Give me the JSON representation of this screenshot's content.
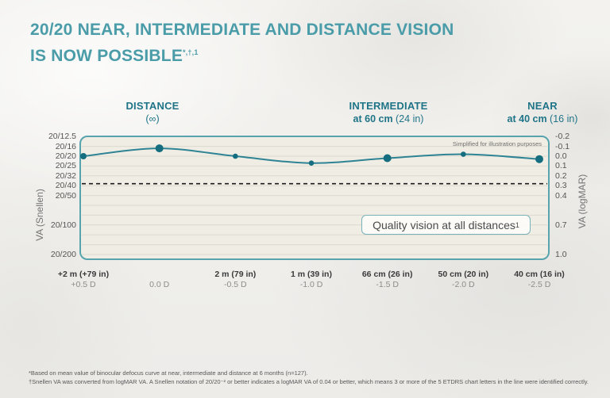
{
  "page": {
    "title_line1": "20/20 NEAR, INTERMEDIATE AND DISTANCE VISION",
    "title_line2": "IS NOW POSSIBLE",
    "title_superscript": "*,†,1",
    "accent_color": "#4A9CA9"
  },
  "headers": [
    {
      "line1": "DISTANCE",
      "line2_bold": "",
      "line2_normal": "(∞)"
    },
    {
      "line1": "INTERMEDIATE",
      "line2_bold": "at 60 cm",
      "line2_normal": " (24 in)"
    },
    {
      "line1": "NEAR",
      "line2_bold": "at 40 cm",
      "line2_normal": " (16 in)"
    }
  ],
  "chart_data": {
    "type": "line",
    "title": "",
    "note": "Simplified for illustration purposes",
    "callout": "Quality vision at all distances",
    "callout_superscript": "1",
    "x_categories": [
      {
        "distance": "+2 m (+79 in)",
        "defocus": "+0.5 D"
      },
      {
        "distance": "",
        "defocus": "0.0 D"
      },
      {
        "distance": "2 m (79 in)",
        "defocus": "-0.5 D"
      },
      {
        "distance": "1 m (39 in)",
        "defocus": "-1.0 D"
      },
      {
        "distance": "66 cm (26 in)",
        "defocus": "-1.5 D"
      },
      {
        "distance": "50 cm (20 in)",
        "defocus": "-2.0 D"
      },
      {
        "distance": "40 cm (16 in)",
        "defocus": "-2.5 D"
      }
    ],
    "series": [
      {
        "name": "Mean binocular defocus curve at 6 months",
        "values_logmar": [
          0.0,
          -0.08,
          0.0,
          0.07,
          0.02,
          -0.02,
          0.03
        ],
        "emphasized_point_indexes": [
          1,
          4,
          6
        ],
        "line_color": "#2E8494",
        "dot_color": "#156E80"
      }
    ],
    "y_axis_left": {
      "label": "VA (Snellen)",
      "tick_labels": [
        "20/12.5",
        "20/16",
        "20/20",
        "20/25",
        "20/32",
        "20/40",
        "20/50",
        "20/100",
        "20/200"
      ]
    },
    "y_axis_right": {
      "label": "VA (logMAR)",
      "tick_labels": [
        "-0.2",
        "-0.1",
        "0.0",
        "0.1",
        "0.2",
        "0.3",
        "0.4",
        "0.7",
        "1.0"
      ]
    },
    "tick_logmar_positions": [
      -0.2,
      -0.1,
      0.0,
      0.1,
      0.2,
      0.3,
      0.4,
      0.7,
      1.0
    ],
    "ylim": [
      -0.2,
      1.0
    ],
    "reference_line_logmar": 0.28,
    "grid": "horizontal gridlines every 0.1 logMAR",
    "legend_position": "none"
  },
  "footnotes": [
    "*Based on mean value of binocular defocus curve at near, intermediate and distance at 6 months (n=127).",
    "†Snellen VA was converted from logMAR VA. A Snellen notation of 20/20⁻² or better indicates a logMAR VA of 0.04 or better, which means 3 or more of the 5 ETDRS chart letters in the line were identified correctly."
  ]
}
